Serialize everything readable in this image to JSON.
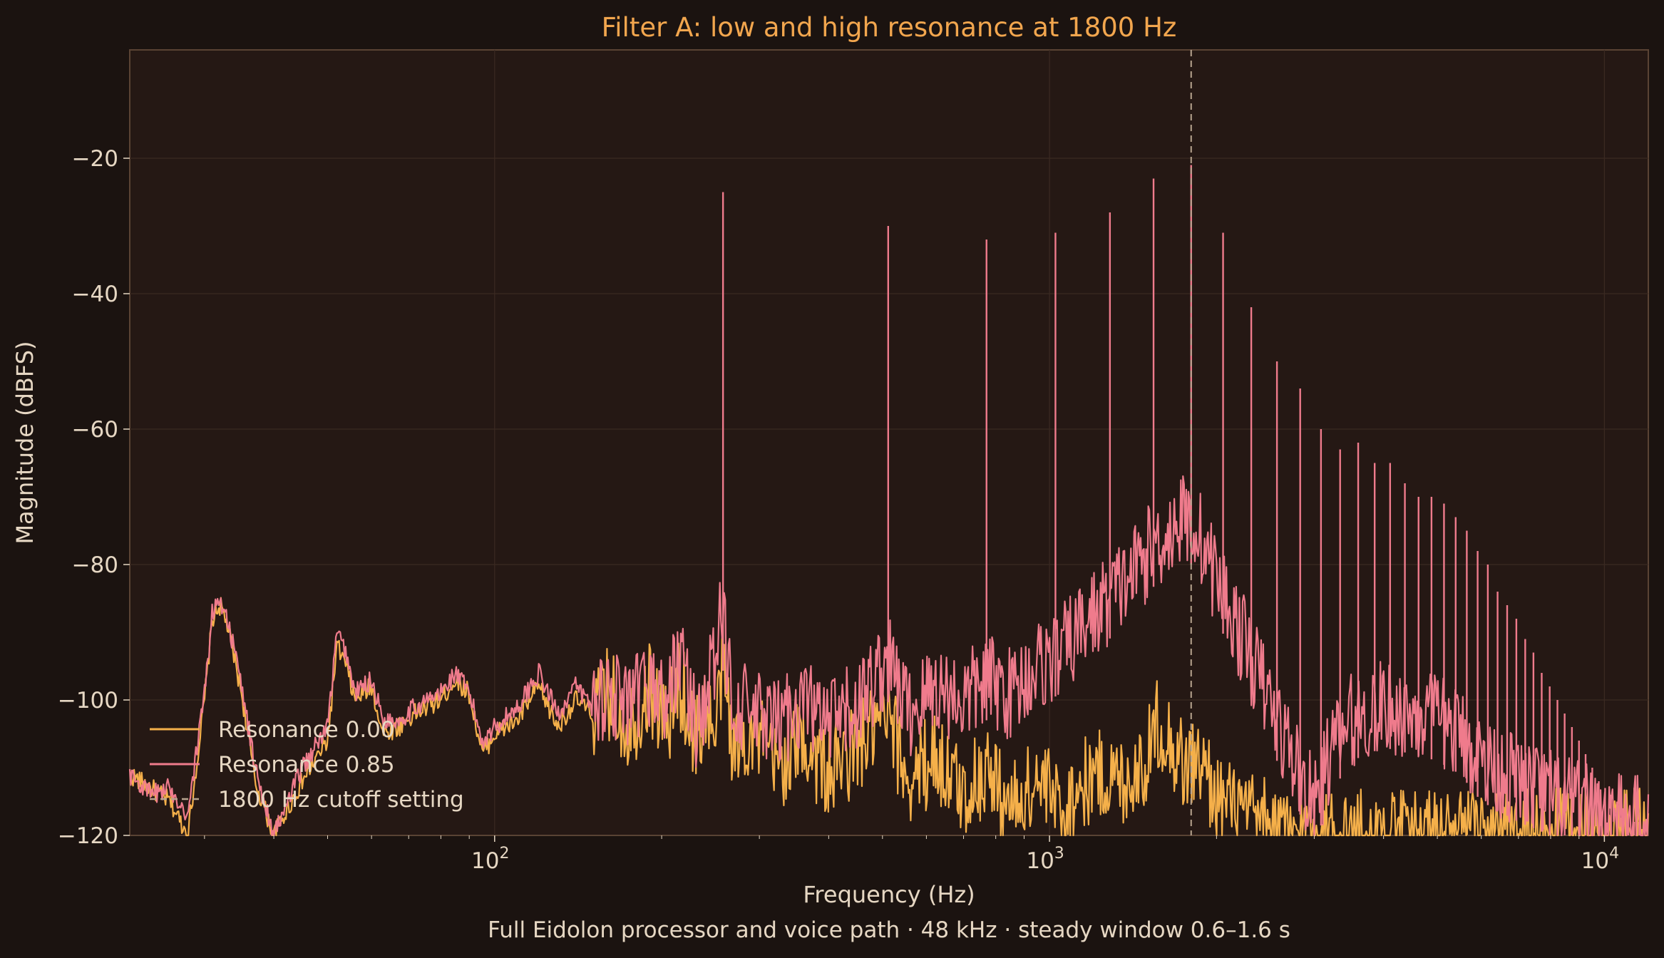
{
  "chart_data": {
    "type": "line",
    "title": "Filter A: low and high resonance at 1800 Hz",
    "subtitle": "Full Eidolon processor and voice path · 48 kHz · steady window 0.6–1.6 s",
    "xlabel": "Frequency (Hz)",
    "ylabel": "Magnitude (dBFS)",
    "xscale": "log",
    "xlim": [
      22,
      12000
    ],
    "ylim": [
      -120,
      -4
    ],
    "x_ticks": [
      {
        "value": 100,
        "base": "10",
        "exp": "2"
      },
      {
        "value": 1000,
        "base": "10",
        "exp": "3"
      },
      {
        "value": 10000,
        "base": "10",
        "exp": "4"
      }
    ],
    "y_ticks": [
      {
        "value": -20,
        "label": "−20"
      },
      {
        "value": -40,
        "label": "−40"
      },
      {
        "value": -60,
        "label": "−60"
      },
      {
        "value": -80,
        "label": "−80"
      },
      {
        "value": -100,
        "label": "−100"
      },
      {
        "value": -120,
        "label": "−120"
      }
    ],
    "grid": true,
    "legend_position": "lower-left",
    "cutoff_line": {
      "x": 1800,
      "label": "1800 Hz cutoff setting",
      "color": "#b8a48f"
    },
    "series": [
      {
        "name": "Resonance 0.00",
        "color": "#f5b04a",
        "points": [
          [
            22,
            -111
          ],
          [
            24,
            -113
          ],
          [
            26,
            -115
          ],
          [
            28,
            -120
          ],
          [
            30,
            -100
          ],
          [
            31,
            -88
          ],
          [
            32,
            -86
          ],
          [
            33,
            -89
          ],
          [
            35,
            -99
          ],
          [
            37,
            -112
          ],
          [
            40,
            -120
          ],
          [
            45,
            -112
          ],
          [
            50,
            -106
          ],
          [
            52,
            -92
          ],
          [
            54,
            -95
          ],
          [
            56,
            -100
          ],
          [
            60,
            -98
          ],
          [
            63,
            -105
          ],
          [
            67,
            -104
          ],
          [
            72,
            -102
          ],
          [
            80,
            -100
          ],
          [
            85,
            -97
          ],
          [
            90,
            -99
          ],
          [
            95,
            -108
          ],
          [
            100,
            -105
          ],
          [
            110,
            -103
          ],
          [
            120,
            -98
          ],
          [
            130,
            -104
          ],
          [
            140,
            -100
          ],
          [
            150,
            -102
          ],
          [
            160,
            -99
          ],
          [
            175,
            -104
          ],
          [
            190,
            -98
          ],
          [
            205,
            -104
          ],
          [
            215,
            -97
          ],
          [
            230,
            -106
          ],
          [
            240,
            -101
          ],
          [
            250,
            -106
          ],
          [
            256,
            -96
          ],
          [
            262,
            -99
          ],
          [
            270,
            -108
          ],
          [
            290,
            -104
          ],
          [
            320,
            -110
          ],
          [
            360,
            -106
          ],
          [
            400,
            -111
          ],
          [
            450,
            -107
          ],
          [
            510,
            -103
          ],
          [
            560,
            -112
          ],
          [
            620,
            -108
          ],
          [
            700,
            -114
          ],
          [
            770,
            -110
          ],
          [
            850,
            -116
          ],
          [
            950,
            -112
          ],
          [
            1050,
            -116
          ],
          [
            1200,
            -111
          ],
          [
            1350,
            -112
          ],
          [
            1500,
            -109
          ],
          [
            1560,
            -103
          ],
          [
            1650,
            -106
          ],
          [
            1750,
            -110
          ],
          [
            1850,
            -109
          ],
          [
            2000,
            -114
          ],
          [
            2200,
            -117
          ],
          [
            2400,
            -118
          ],
          [
            2600,
            -120
          ],
          [
            12000,
            -120
          ]
        ],
        "peaks": []
      },
      {
        "name": "Resonance 0.85",
        "color": "#ef7b8c",
        "points": [
          [
            22,
            -111
          ],
          [
            24,
            -114
          ],
          [
            26,
            -113
          ],
          [
            28,
            -117
          ],
          [
            30,
            -99
          ],
          [
            31,
            -87
          ],
          [
            32,
            -85
          ],
          [
            33,
            -88
          ],
          [
            35,
            -98
          ],
          [
            37,
            -110
          ],
          [
            40,
            -120
          ],
          [
            45,
            -110
          ],
          [
            50,
            -104
          ],
          [
            52,
            -90
          ],
          [
            54,
            -93
          ],
          [
            56,
            -99
          ],
          [
            60,
            -97
          ],
          [
            63,
            -103
          ],
          [
            67,
            -103
          ],
          [
            72,
            -101
          ],
          [
            80,
            -99
          ],
          [
            85,
            -96
          ],
          [
            90,
            -99
          ],
          [
            95,
            -106
          ],
          [
            100,
            -104
          ],
          [
            110,
            -101
          ],
          [
            120,
            -96
          ],
          [
            130,
            -102
          ],
          [
            140,
            -98
          ],
          [
            150,
            -101
          ],
          [
            160,
            -98
          ],
          [
            175,
            -102
          ],
          [
            190,
            -97
          ],
          [
            205,
            -101
          ],
          [
            215,
            -92
          ],
          [
            230,
            -104
          ],
          [
            240,
            -99
          ],
          [
            250,
            -94
          ],
          [
            256,
            -88
          ],
          [
            262,
            -93
          ],
          [
            270,
            -100
          ],
          [
            290,
            -102
          ],
          [
            320,
            -104
          ],
          [
            360,
            -100
          ],
          [
            400,
            -104
          ],
          [
            450,
            -101
          ],
          [
            510,
            -94
          ],
          [
            560,
            -102
          ],
          [
            620,
            -98
          ],
          [
            700,
            -100
          ],
          [
            770,
            -97
          ],
          [
            850,
            -99
          ],
          [
            950,
            -95
          ],
          [
            1050,
            -93
          ],
          [
            1150,
            -89
          ],
          [
            1250,
            -86
          ],
          [
            1350,
            -83
          ],
          [
            1450,
            -80
          ],
          [
            1550,
            -77
          ],
          [
            1650,
            -75
          ],
          [
            1750,
            -73
          ],
          [
            1850,
            -75
          ],
          [
            1950,
            -80
          ],
          [
            2050,
            -84
          ],
          [
            2200,
            -90
          ],
          [
            2400,
            -97
          ],
          [
            2600,
            -104
          ],
          [
            2800,
            -110
          ],
          [
            3000,
            -116
          ],
          [
            3200,
            -108
          ],
          [
            3500,
            -103
          ],
          [
            4000,
            -101
          ],
          [
            4500,
            -102
          ],
          [
            5000,
            -103
          ],
          [
            5500,
            -105
          ],
          [
            6000,
            -109
          ],
          [
            7000,
            -112
          ],
          [
            8000,
            -114
          ],
          [
            9000,
            -116
          ],
          [
            10000,
            -117
          ],
          [
            11000,
            -118
          ],
          [
            12000,
            -118
          ]
        ],
        "peaks": [
          [
            258,
            -25
          ],
          [
            512,
            -30
          ],
          [
            770,
            -32
          ],
          [
            1025,
            -31
          ],
          [
            1285,
            -28
          ],
          [
            1540,
            -23
          ],
          [
            1800,
            -21
          ],
          [
            2055,
            -31
          ],
          [
            2310,
            -42
          ],
          [
            2570,
            -50
          ],
          [
            2830,
            -54
          ],
          [
            3085,
            -60
          ],
          [
            3340,
            -63
          ],
          [
            3600,
            -62
          ],
          [
            3855,
            -65
          ],
          [
            4110,
            -65
          ],
          [
            4370,
            -68
          ],
          [
            4625,
            -70
          ],
          [
            4880,
            -70
          ],
          [
            5140,
            -71
          ],
          [
            5395,
            -73
          ],
          [
            5650,
            -75
          ],
          [
            5910,
            -78
          ],
          [
            6165,
            -80
          ],
          [
            6420,
            -84
          ],
          [
            6680,
            -86
          ],
          [
            6940,
            -88
          ],
          [
            7200,
            -91
          ],
          [
            7450,
            -93
          ],
          [
            7710,
            -96
          ],
          [
            7970,
            -98
          ],
          [
            8230,
            -100
          ],
          [
            8480,
            -102
          ],
          [
            8740,
            -104
          ],
          [
            9000,
            -106
          ],
          [
            9250,
            -108
          ],
          [
            9510,
            -110
          ],
          [
            9770,
            -112
          ],
          [
            10030,
            -113
          ],
          [
            10280,
            -114
          ],
          [
            10540,
            -115
          ],
          [
            10800,
            -116
          ],
          [
            11050,
            -117
          ],
          [
            11310,
            -118
          ],
          [
            11560,
            -118
          ]
        ]
      }
    ]
  }
}
